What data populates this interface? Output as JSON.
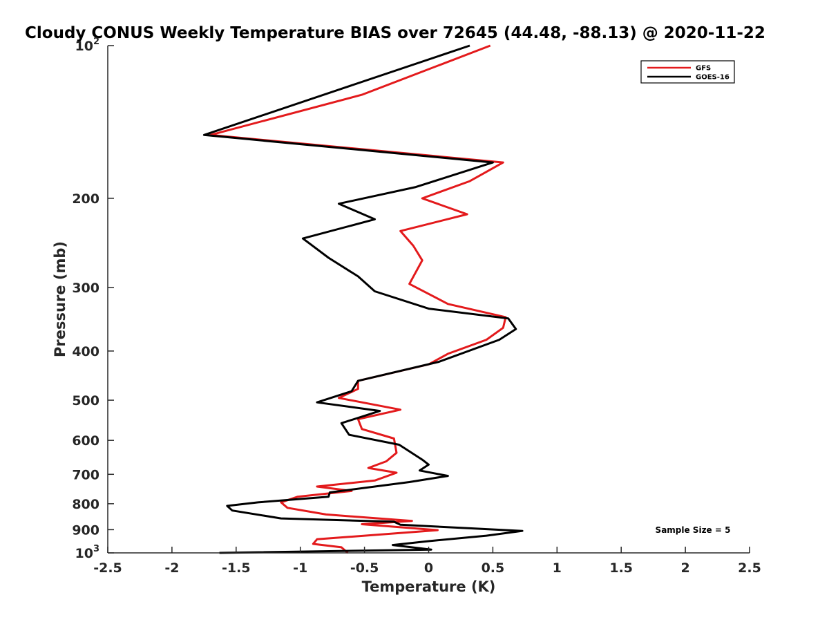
{
  "chart_data": {
    "type": "line",
    "title": "Cloudy CONUS Weekly Temperature BIAS over 72645 (44.48, -88.13) @ 2020-11-22",
    "xlabel": "Temperature (K)",
    "ylabel": "Pressure (mb)",
    "xlim": [
      -2.5,
      2.5
    ],
    "ylim": [
      100,
      1000
    ],
    "y_scale": "log",
    "y_reversed": true,
    "grid": false,
    "legend_position": "top-right",
    "x_ticks": [
      "-2.5",
      "-2",
      "-1.5",
      "-1",
      "-0.5",
      "0",
      "0.5",
      "1",
      "1.5",
      "2",
      "2.5"
    ],
    "x_tick_values": [
      -2.5,
      -2,
      -1.5,
      -1,
      -0.5,
      0,
      0.5,
      1,
      1.5,
      2,
      2.5
    ],
    "y_ticks": [
      {
        "value": 100,
        "base": "10",
        "exp": "2"
      },
      {
        "value": 200,
        "label": "200"
      },
      {
        "value": 300,
        "label": "300"
      },
      {
        "value": 400,
        "label": "400"
      },
      {
        "value": 500,
        "label": "500"
      },
      {
        "value": 600,
        "label": "600"
      },
      {
        "value": 700,
        "label": "700"
      },
      {
        "value": 800,
        "label": "800"
      },
      {
        "value": 900,
        "label": "900"
      },
      {
        "value": 1000,
        "base": "10",
        "exp": "3"
      }
    ],
    "series": [
      {
        "name": "GFS",
        "color": "#e31a1c",
        "points": [
          [
            0.48,
            100
          ],
          [
            -0.52,
            125
          ],
          [
            -1.7,
            150
          ],
          [
            0.58,
            170
          ],
          [
            0.32,
            185
          ],
          [
            -0.05,
            200
          ],
          [
            0.3,
            215
          ],
          [
            -0.22,
            232
          ],
          [
            -0.12,
            248
          ],
          [
            -0.05,
            265
          ],
          [
            -0.15,
            295
          ],
          [
            0.15,
            323
          ],
          [
            0.6,
            343
          ],
          [
            0.58,
            360
          ],
          [
            0.45,
            380
          ],
          [
            0.15,
            405
          ],
          [
            0.0,
            425
          ],
          [
            -0.55,
            458
          ],
          [
            -0.55,
            475
          ],
          [
            -0.7,
            495
          ],
          [
            -0.22,
            522
          ],
          [
            -0.55,
            545
          ],
          [
            -0.52,
            570
          ],
          [
            -0.27,
            595
          ],
          [
            -0.25,
            635
          ],
          [
            -0.33,
            660
          ],
          [
            -0.47,
            680
          ],
          [
            -0.25,
            695
          ],
          [
            -0.42,
            720
          ],
          [
            -0.87,
            740
          ],
          [
            -0.6,
            755
          ],
          [
            -1.02,
            775
          ],
          [
            -1.15,
            795
          ],
          [
            -1.1,
            815
          ],
          [
            -0.8,
            840
          ],
          [
            -0.13,
            865
          ],
          [
            -0.52,
            878
          ],
          [
            0.07,
            902
          ],
          [
            -0.87,
            940
          ],
          [
            -0.9,
            960
          ],
          [
            -0.68,
            975
          ],
          [
            -0.63,
            1000
          ]
        ]
      },
      {
        "name": "GOES-16",
        "color": "#000000",
        "points": [
          [
            0.32,
            100
          ],
          [
            -1.75,
            150
          ],
          [
            0.5,
            170
          ],
          [
            -0.1,
            190
          ],
          [
            -0.7,
            205
          ],
          [
            -0.42,
            220
          ],
          [
            -0.98,
            240
          ],
          [
            -0.78,
            262
          ],
          [
            -0.55,
            285
          ],
          [
            -0.42,
            305
          ],
          [
            0.0,
            330
          ],
          [
            0.62,
            345
          ],
          [
            0.68,
            362
          ],
          [
            0.55,
            380
          ],
          [
            0.08,
            420
          ],
          [
            -0.55,
            458
          ],
          [
            -0.6,
            480
          ],
          [
            -0.87,
            505
          ],
          [
            -0.38,
            525
          ],
          [
            -0.68,
            555
          ],
          [
            -0.62,
            585
          ],
          [
            -0.23,
            612
          ],
          [
            -0.05,
            655
          ],
          [
            0.0,
            670
          ],
          [
            -0.07,
            688
          ],
          [
            0.15,
            705
          ],
          [
            -0.15,
            725
          ],
          [
            -0.77,
            760
          ],
          [
            -0.78,
            775
          ],
          [
            -1.33,
            795
          ],
          [
            -1.57,
            808
          ],
          [
            -1.53,
            825
          ],
          [
            -1.15,
            855
          ],
          [
            -0.27,
            868
          ],
          [
            -0.22,
            880
          ],
          [
            0.73,
            905
          ],
          [
            0.45,
            925
          ],
          [
            0.0,
            948
          ],
          [
            -0.28,
            965
          ],
          [
            0.02,
            985
          ],
          [
            -1.63,
            1000
          ]
        ]
      }
    ],
    "annotation": "Sample Size = 5"
  }
}
